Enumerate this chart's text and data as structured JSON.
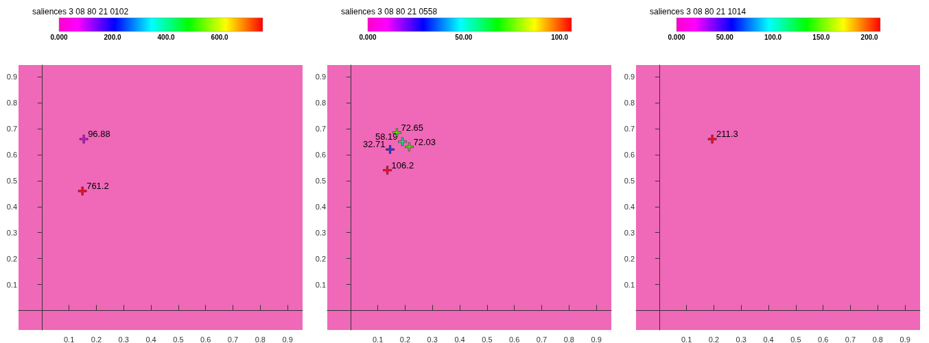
{
  "chart_data": [
    {
      "type": "scatter",
      "title": "saliences 3 08 80 21 0102",
      "x": [
        0.154,
        0.149
      ],
      "values": [
        0.66,
        0.46
      ],
      "cvalues": [
        96.88,
        761.2
      ],
      "clim": [
        0,
        761.2
      ],
      "cticks": [
        {
          "value": 0,
          "label": "0.000"
        },
        {
          "value": 200,
          "label": "200.0"
        },
        {
          "value": 400,
          "label": "400.0"
        },
        {
          "value": 600,
          "label": "600.0"
        }
      ],
      "annotations": [
        {
          "text": "96.88",
          "x": 0.154,
          "y": 0.66
        },
        {
          "text": "761.2",
          "x": 0.149,
          "y": 0.46
        }
      ],
      "xlim": [
        -0.085,
        0.955
      ],
      "ylim": [
        -0.075,
        0.945
      ],
      "xticks": [
        0.1,
        0.2,
        0.3,
        0.4,
        0.5,
        0.6,
        0.7,
        0.8,
        0.9
      ],
      "yticks": [
        0.1,
        0.2,
        0.3,
        0.4,
        0.5,
        0.6,
        0.7,
        0.8,
        0.9
      ],
      "marker": "cross",
      "grid": false
    },
    {
      "type": "scatter",
      "title": "saliences 3 08 80 21 0558",
      "x": [
        0.17,
        0.19,
        0.215,
        0.145,
        0.135
      ],
      "values": [
        0.685,
        0.65,
        0.63,
        0.62,
        0.54
      ],
      "cvalues": [
        72.65,
        58.19,
        72.03,
        32.71,
        106.2
      ],
      "clim": [
        0,
        106.2
      ],
      "cticks": [
        {
          "value": 0,
          "label": "0.000"
        },
        {
          "value": 50,
          "label": "50.00"
        },
        {
          "value": 100,
          "label": "100.0"
        }
      ],
      "annotations": [
        {
          "text": "72.65",
          "x": 0.17,
          "y": 0.685
        },
        {
          "text": "58.19",
          "x": 0.19,
          "y": 0.65
        },
        {
          "text": "72.03",
          "x": 0.215,
          "y": 0.63
        },
        {
          "text": "32.71",
          "x": 0.145,
          "y": 0.62
        },
        {
          "text": "106.2",
          "x": 0.135,
          "y": 0.54
        }
      ],
      "xlim": [
        -0.085,
        0.955
      ],
      "ylim": [
        -0.075,
        0.945
      ],
      "xticks": [
        0.1,
        0.2,
        0.3,
        0.4,
        0.5,
        0.6,
        0.7,
        0.8,
        0.9
      ],
      "yticks": [
        0.1,
        0.2,
        0.3,
        0.4,
        0.5,
        0.6,
        0.7,
        0.8,
        0.9
      ],
      "marker": "cross",
      "grid": false
    },
    {
      "type": "scatter",
      "title": "saliences 3 08 80 21 1014",
      "x": [
        0.194
      ],
      "values": [
        0.66
      ],
      "cvalues": [
        211.3
      ],
      "clim": [
        0,
        211.3
      ],
      "cticks": [
        {
          "value": 0,
          "label": "0.000"
        },
        {
          "value": 50,
          "label": "50.00"
        },
        {
          "value": 100,
          "label": "100.0"
        },
        {
          "value": 150,
          "label": "150.0"
        },
        {
          "value": 200,
          "label": "200.0"
        }
      ],
      "annotations": [
        {
          "text": "211.3",
          "x": 0.194,
          "y": 0.66
        }
      ],
      "xlim": [
        -0.085,
        0.955
      ],
      "ylim": [
        -0.075,
        0.945
      ],
      "xticks": [
        0.1,
        0.2,
        0.3,
        0.4,
        0.5,
        0.6,
        0.7,
        0.8,
        0.9
      ],
      "yticks": [
        0.1,
        0.2,
        0.3,
        0.4,
        0.5,
        0.6,
        0.7,
        0.8,
        0.9
      ],
      "marker": "cross",
      "grid": false
    }
  ]
}
